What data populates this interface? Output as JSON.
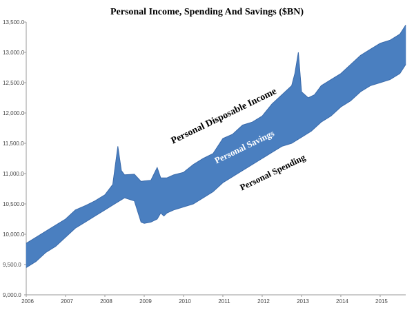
{
  "chart_data": {
    "type": "area",
    "title": "Personal Income, Spending And Savings ($BN)",
    "xlabel": "",
    "ylabel": "",
    "ylim": [
      9000,
      13500
    ],
    "xlim": [
      2006.0,
      2015.65
    ],
    "y_ticks": [
      "9,000.0",
      "9,500.0",
      "10,000.0",
      "10,500.0",
      "11,000.0",
      "11,500.0",
      "12,000.0",
      "12,500.0",
      "13,000.0",
      "13,500.0"
    ],
    "x_ticks": [
      "2006",
      "2007",
      "2008",
      "2009",
      "2010",
      "2011",
      "2012",
      "2013",
      "2014",
      "2015"
    ],
    "grid": false,
    "legend": "none",
    "fill_color": "#4a7fc0",
    "annotations": {
      "income": "Personal Disposable Income",
      "savings": "Personal Savings",
      "spending": "Personal Spending"
    },
    "series": [
      {
        "name": "Personal Disposable Income",
        "x": [
          2006.0,
          2006.25,
          2006.5,
          2006.75,
          2007.0,
          2007.25,
          2007.5,
          2007.75,
          2008.0,
          2008.2,
          2008.33,
          2008.42,
          2008.5,
          2008.75,
          2008.92,
          2009.0,
          2009.17,
          2009.33,
          2009.42,
          2009.58,
          2009.75,
          2010.0,
          2010.25,
          2010.5,
          2010.75,
          2011.0,
          2011.25,
          2011.5,
          2011.75,
          2012.0,
          2012.25,
          2012.5,
          2012.75,
          2012.83,
          2012.92,
          2013.0,
          2013.17,
          2013.33,
          2013.5,
          2013.75,
          2014.0,
          2014.25,
          2014.5,
          2014.75,
          2015.0,
          2015.25,
          2015.5,
          2015.65
        ],
        "values": [
          9850,
          9950,
          10050,
          10150,
          10250,
          10400,
          10470,
          10550,
          10650,
          10820,
          11450,
          11050,
          10980,
          10990,
          10870,
          10880,
          10890,
          11100,
          10930,
          10930,
          10980,
          11020,
          11150,
          11250,
          11330,
          11580,
          11650,
          11800,
          11850,
          11950,
          12150,
          12300,
          12450,
          12650,
          13000,
          12350,
          12250,
          12300,
          12450,
          12550,
          12650,
          12800,
          12950,
          13050,
          13150,
          13200,
          13300,
          13450
        ]
      },
      {
        "name": "Personal Spending",
        "x": [
          2006.0,
          2006.25,
          2006.5,
          2006.75,
          2007.0,
          2007.25,
          2007.5,
          2007.75,
          2008.0,
          2008.25,
          2008.5,
          2008.75,
          2008.92,
          2009.0,
          2009.17,
          2009.33,
          2009.42,
          2009.5,
          2009.58,
          2009.75,
          2010.0,
          2010.25,
          2010.5,
          2010.75,
          2011.0,
          2011.25,
          2011.5,
          2011.75,
          2012.0,
          2012.25,
          2012.5,
          2012.75,
          2013.0,
          2013.25,
          2013.5,
          2013.75,
          2014.0,
          2014.25,
          2014.5,
          2014.75,
          2015.0,
          2015.25,
          2015.5,
          2015.65
        ],
        "values": [
          9450,
          9550,
          9700,
          9800,
          9950,
          10100,
          10200,
          10300,
          10400,
          10500,
          10600,
          10550,
          10200,
          10180,
          10200,
          10250,
          10350,
          10300,
          10350,
          10400,
          10450,
          10500,
          10600,
          10700,
          10850,
          10950,
          11050,
          11150,
          11250,
          11350,
          11450,
          11500,
          11600,
          11700,
          11850,
          11950,
          12100,
          12200,
          12350,
          12450,
          12500,
          12550,
          12650,
          12800
        ]
      }
    ]
  }
}
